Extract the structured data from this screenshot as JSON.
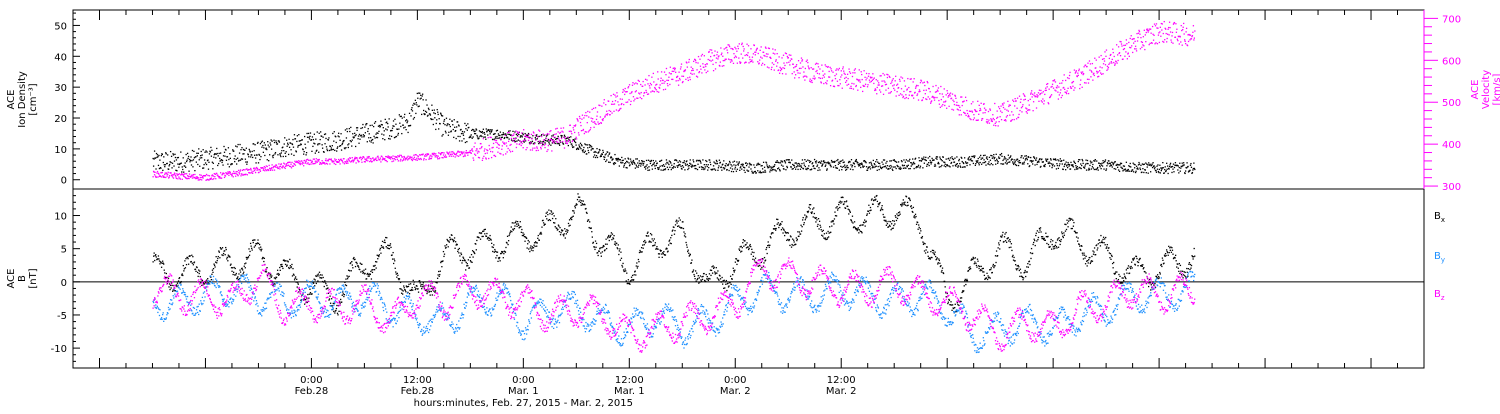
{
  "chart_data": [
    {
      "type": "scatter",
      "panel": "top",
      "left_axis_label": [
        "ACE",
        "Ion Density",
        "[cm⁻³]"
      ],
      "right_axis_label": [
        "ACE",
        "Velocity",
        "[km/s]"
      ],
      "left_ylim": [
        -3,
        55
      ],
      "left_yticks": [
        0,
        10,
        20,
        30,
        40,
        50
      ],
      "right_ylim": [
        293,
        720
      ],
      "right_yticks": [
        300,
        400,
        500,
        600,
        700
      ],
      "series": [
        {
          "key": "density",
          "color": "#000000",
          "axis": "left",
          "x": [
            -18,
            -15,
            -12,
            -9,
            -6,
            -3,
            0,
            3,
            6,
            9,
            11,
            12,
            15,
            18,
            21,
            24,
            27,
            29,
            32,
            35,
            38,
            42,
            46,
            50,
            54,
            58,
            62,
            66,
            70,
            74,
            78,
            82,
            86,
            90,
            94,
            98,
            100
          ],
          "y": [
            6,
            6,
            7,
            8,
            9,
            11,
            12,
            13,
            15,
            17,
            19,
            26,
            17,
            15,
            15,
            14,
            13,
            13,
            9,
            6,
            5,
            5,
            5,
            4,
            5,
            5,
            5,
            5,
            6,
            6,
            7,
            6,
            5,
            5,
            4,
            4,
            4
          ]
        },
        {
          "key": "velocity",
          "color": "#ff00ff",
          "axis": "right",
          "x": [
            -18,
            -15,
            -12,
            -9,
            -6,
            -3,
            0,
            3,
            6,
            9,
            12,
            15,
            18,
            21,
            24,
            27,
            29,
            30,
            33,
            36,
            39,
            42,
            45,
            48,
            51,
            54,
            57,
            60,
            63,
            66,
            69,
            72,
            75,
            78,
            81,
            84,
            87,
            90,
            93,
            96,
            100
          ],
          "y": [
            330,
            325,
            322,
            330,
            340,
            350,
            360,
            360,
            365,
            367,
            370,
            375,
            380,
            400,
            410,
            410,
            420,
            440,
            480,
            520,
            550,
            570,
            600,
            620,
            610,
            590,
            570,
            560,
            550,
            540,
            530,
            510,
            480,
            470,
            500,
            530,
            560,
            600,
            640,
            670,
            660
          ]
        }
      ]
    },
    {
      "type": "scatter",
      "panel": "bottom",
      "left_axis_label": [
        "ACE",
        "B",
        "[nT]"
      ],
      "ylim": [
        -13,
        14
      ],
      "yticks": [
        -10,
        -5,
        0,
        5,
        10
      ],
      "legend": [
        "B",
        "B",
        "B"
      ],
      "legend_subscripts": [
        "x",
        "y",
        "z"
      ],
      "legend_placement": "right",
      "series": [
        {
          "key": "Bx",
          "color": "#000000",
          "x": [
            -18,
            -15,
            -12,
            -9,
            -6,
            -3,
            0,
            3,
            6,
            9,
            12,
            15,
            18,
            21,
            24,
            27,
            30,
            33,
            36,
            39,
            42,
            45,
            48,
            51,
            54,
            57,
            60,
            63,
            66,
            69,
            72,
            75,
            78,
            81,
            84,
            87,
            90,
            93,
            96,
            100
          ],
          "y": [
            2,
            1,
            2,
            3,
            4,
            1,
            -1,
            -2,
            3,
            4,
            -3,
            4,
            5,
            6,
            7,
            8,
            11,
            6,
            2,
            6,
            7,
            -1,
            3,
            5,
            8,
            9,
            10,
            10,
            11,
            9,
            -3,
            1,
            5,
            3,
            8,
            6,
            4,
            1,
            2,
            4
          ]
        },
        {
          "key": "By",
          "color": "#1e90ff",
          "x": [
            -18,
            -15,
            -12,
            -9,
            -6,
            -3,
            0,
            3,
            6,
            9,
            12,
            15,
            18,
            21,
            24,
            27,
            30,
            33,
            36,
            39,
            42,
            45,
            48,
            51,
            54,
            57,
            60,
            63,
            66,
            69,
            72,
            75,
            78,
            81,
            84,
            87,
            90,
            93,
            96,
            100
          ],
          "y": [
            -3,
            -3,
            -2,
            -1,
            -2,
            -3,
            -2,
            -3,
            -2,
            -4,
            -5,
            -6,
            -3,
            -2,
            -6,
            -4,
            -4,
            -6,
            -7,
            -5,
            -7,
            -6,
            -3,
            -1,
            -2,
            -2,
            -1,
            -2,
            -3,
            -2,
            -4,
            -8,
            -7,
            -6,
            -7,
            -5,
            -4,
            -2,
            -2,
            -1
          ]
        },
        {
          "key": "Bz",
          "color": "#ff00ff",
          "x": [
            -18,
            -15,
            -12,
            -9,
            -6,
            -3,
            0,
            3,
            6,
            9,
            12,
            15,
            18,
            21,
            24,
            27,
            30,
            33,
            36,
            39,
            42,
            45,
            48,
            51,
            54,
            57,
            60,
            63,
            66,
            69,
            72,
            75,
            78,
            81,
            84,
            87,
            90,
            93,
            96,
            100
          ],
          "y": [
            -1,
            -2,
            -2,
            -3,
            1,
            -4,
            -3,
            -4,
            -3,
            -6,
            -2,
            -3,
            -1,
            -2,
            -3,
            -5,
            -4,
            -5,
            -8,
            -7,
            -6,
            -5,
            -3,
            2,
            1,
            0,
            -1,
            -1,
            0,
            -2,
            -3,
            -5,
            -8,
            -6,
            -7,
            -4,
            -3,
            -1,
            -2,
            -1
          ]
        }
      ]
    },
    {
      "type": "axis",
      "xlim": [
        -27,
        126
      ],
      "xlabel": "hours:minutes, Feb. 27, 2015 - Mar.  2, 2015",
      "xticks": [
        {
          "x": 0,
          "time": "0:00",
          "date": "Feb.28"
        },
        {
          "x": 12,
          "time": "12:00",
          "date": "Feb.28"
        },
        {
          "x": 24,
          "time": "0:00",
          "date": "Mar. 1"
        },
        {
          "x": 36,
          "time": "12:00",
          "date": "Mar. 1"
        },
        {
          "x": 48,
          "time": "0:00",
          "date": "Mar. 2"
        },
        {
          "x": 60,
          "time": "12:00",
          "date": "Mar. 2"
        }
      ],
      "grid": false
    }
  ]
}
